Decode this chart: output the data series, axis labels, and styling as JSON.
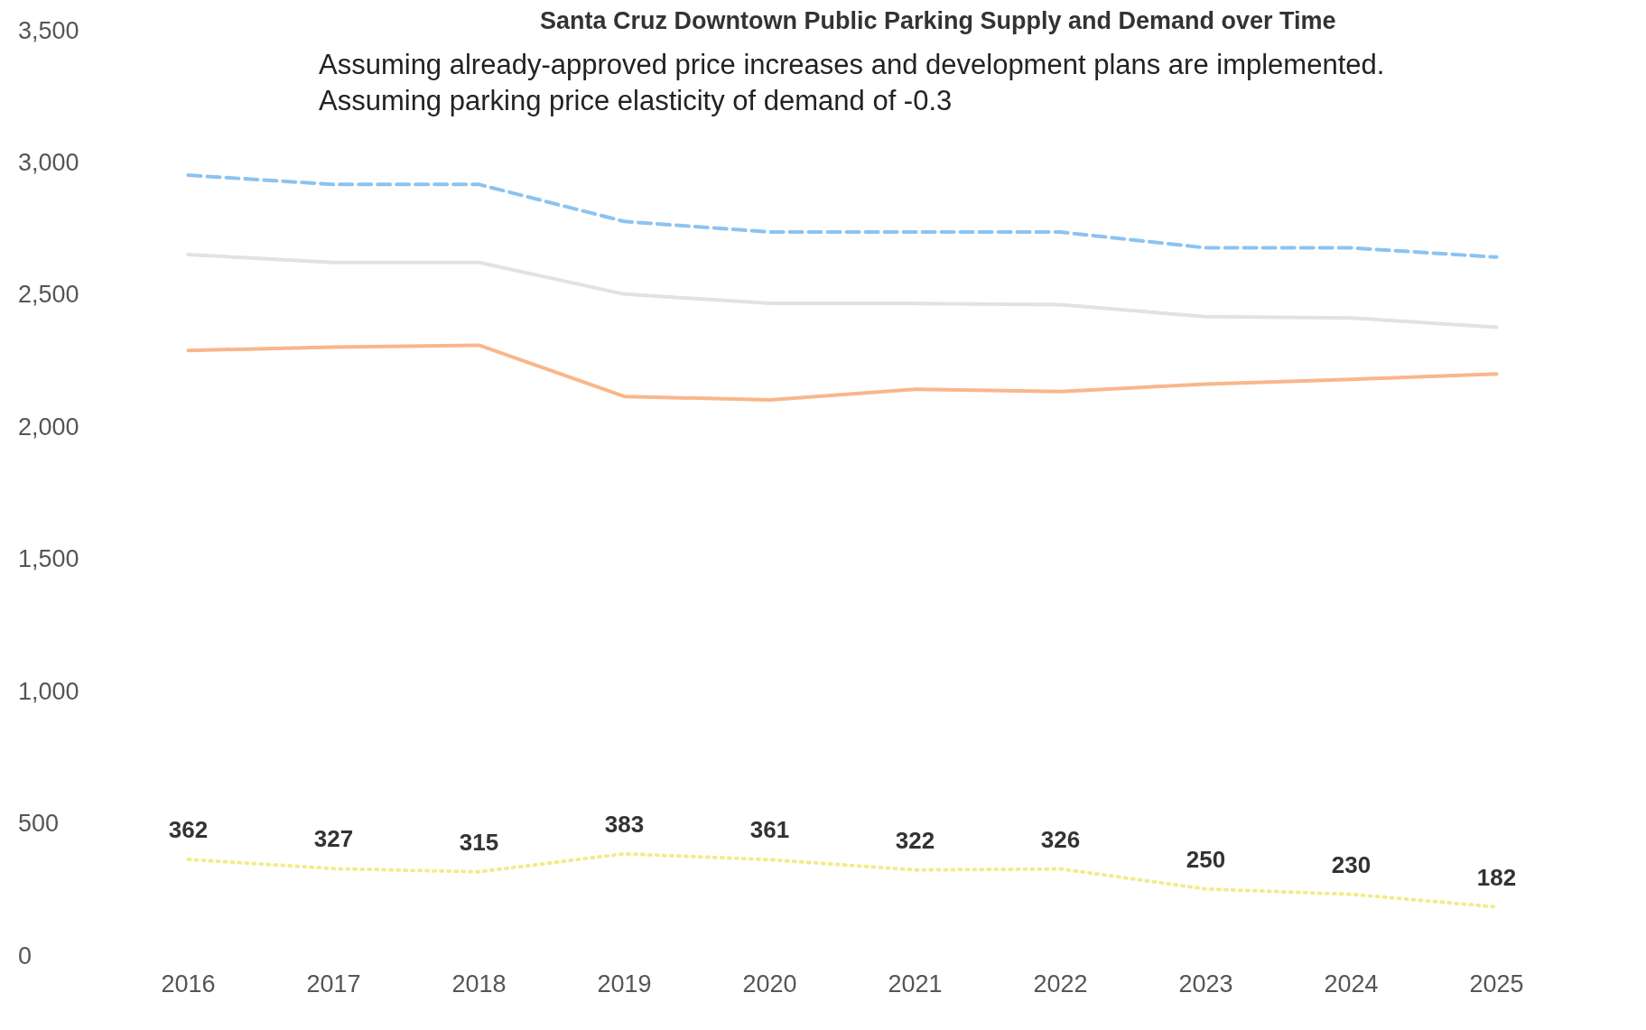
{
  "chart_data": {
    "type": "line",
    "title": "Santa Cruz Downtown Public Parking Supply and Demand over Time",
    "subtitle": "Assuming already-approved price increases and development plans are implemented.\nAssuming parking price elasticity of demand of -0.3",
    "categories": [
      "2016",
      "2017",
      "2018",
      "2019",
      "2020",
      "2021",
      "2022",
      "2023",
      "2024",
      "2025"
    ],
    "series": [
      {
        "color": "#8cc3f0",
        "line_style": "dashed",
        "values": [
          2950,
          2915,
          2915,
          2775,
          2735,
          2735,
          2735,
          2675,
          2675,
          2640
        ]
      },
      {
        "color": "#e2e2e2",
        "line_style": "solid",
        "values": [
          2650,
          2620,
          2620,
          2500,
          2465,
          2465,
          2460,
          2415,
          2410,
          2375
        ]
      },
      {
        "color": "#f8b78a",
        "line_style": "solid",
        "values": [
          2287,
          2300,
          2307,
          2113,
          2100,
          2140,
          2132,
          2160,
          2178,
          2198
        ]
      },
      {
        "color": "#f1ec8a",
        "line_style": "dotted",
        "values": [
          362,
          327,
          315,
          383,
          361,
          322,
          326,
          250,
          230,
          182
        ],
        "value_labels": [
          "362",
          "327",
          "315",
          "383",
          "361",
          "322",
          "326",
          "250",
          "230",
          "182"
        ]
      }
    ],
    "ylim": [
      0,
      3500
    ],
    "yticks": [
      0,
      500,
      {
        "value": 1000,
        "label": "1,000"
      },
      {
        "value": 1500,
        "label": "1,500"
      },
      {
        "value": 2000,
        "label": "2,000"
      },
      {
        "value": 2500,
        "label": "2,500"
      },
      {
        "value": 3000,
        "label": "3,000"
      },
      {
        "value": 3500,
        "label": "3,500"
      }
    ],
    "grid": false,
    "legend": false,
    "marker": "none"
  }
}
